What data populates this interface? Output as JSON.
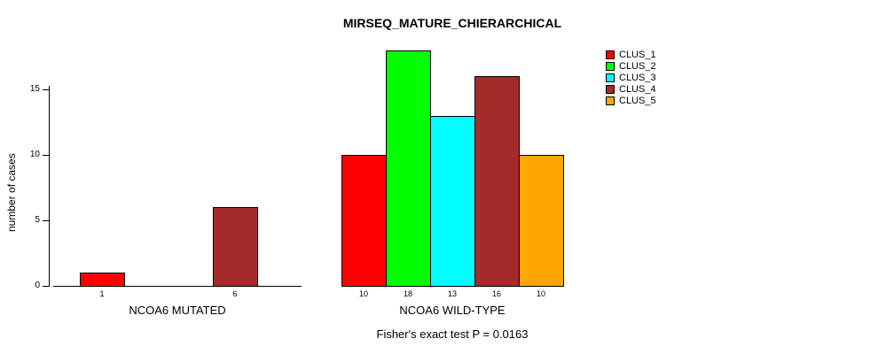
{
  "chart_data": {
    "type": "bar",
    "title": "MIRSEQ_MATURE_CHIERARCHICAL",
    "ylabel": "number of cases",
    "xlabel": "",
    "yticks": [
      0,
      5,
      10,
      15
    ],
    "ylim": [
      0,
      18
    ],
    "grid": false,
    "legend_position": "top-right",
    "legend": [
      {
        "label": "CLUS_1",
        "color": "#FF0000"
      },
      {
        "label": "CLUS_2",
        "color": "#00FF00"
      },
      {
        "label": "CLUS_3",
        "color": "#00FFFF"
      },
      {
        "label": "CLUS_4",
        "color": "#A52A2A"
      },
      {
        "label": "CLUS_5",
        "color": "#FFA500"
      }
    ],
    "groups": [
      {
        "label": "NCOA6 MUTATED",
        "values": [
          1,
          0,
          0,
          6,
          0
        ]
      },
      {
        "label": "NCOA6 WILD-TYPE",
        "values": [
          10,
          18,
          13,
          16,
          10
        ]
      }
    ],
    "annotation": "Fisher's exact test P = 0.0163"
  }
}
